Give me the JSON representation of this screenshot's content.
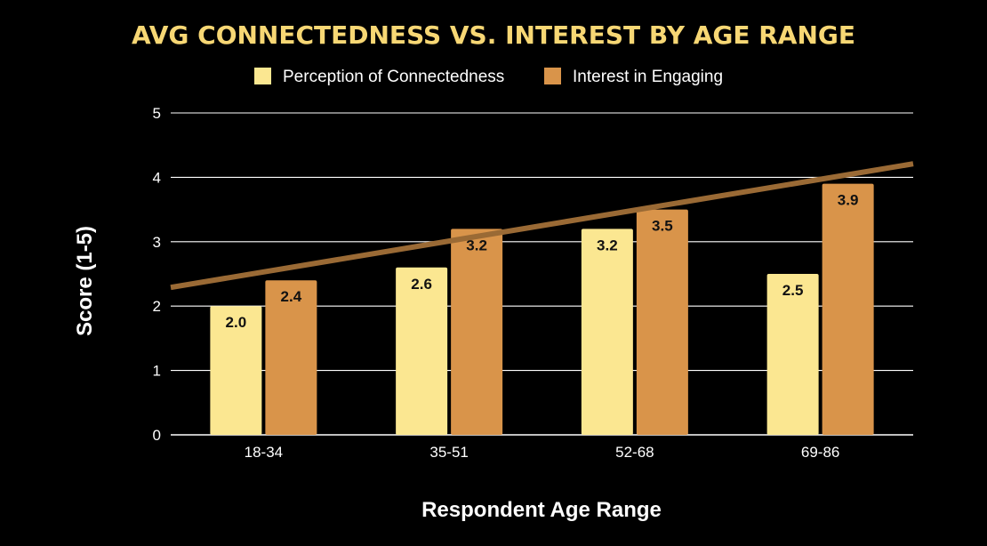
{
  "chart_data": {
    "type": "bar",
    "title": "AVG CONNECTEDNESS VS. INTEREST BY AGE RANGE",
    "xlabel": "Respondent Age Range",
    "ylabel": "Score (1-5)",
    "ylim": [
      0,
      5
    ],
    "yticks": [
      0,
      1,
      2,
      3,
      4,
      5
    ],
    "categories": [
      "18-34",
      "35-51",
      "52-68",
      "69-86"
    ],
    "series": [
      {
        "name": "Perception of Connectedness",
        "values": [
          2.0,
          2.6,
          3.2,
          2.5
        ],
        "labels": [
          "2.0",
          "2.6",
          "3.2",
          "2.5"
        ],
        "color": "#fbe791"
      },
      {
        "name": "Interest in Engaging",
        "values": [
          2.4,
          3.2,
          3.5,
          3.9
        ],
        "labels": [
          "2.4",
          "3.2",
          "3.5",
          "3.9"
        ],
        "color": "#d9944a"
      }
    ],
    "trendline": {
      "series": "Interest in Engaging",
      "color": "#9a6a35"
    },
    "grid": true,
    "legend_position": "top-center"
  }
}
